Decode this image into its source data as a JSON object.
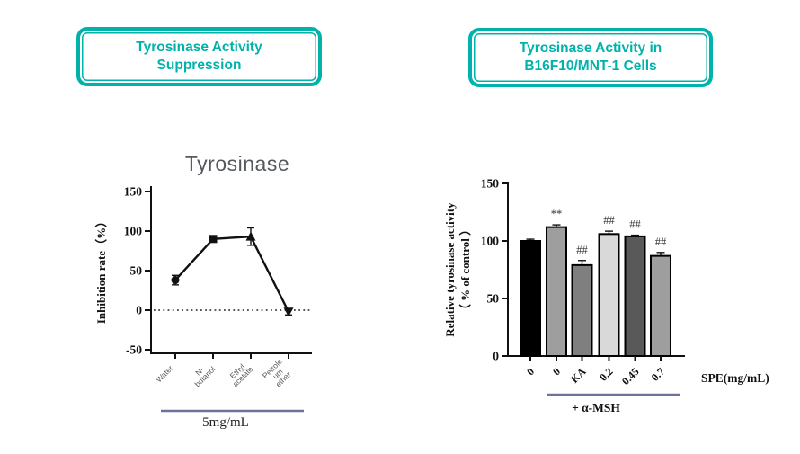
{
  "colors": {
    "accent_teal": "#00B2AA",
    "underline_slate": "#6E739D",
    "title_gray": "#55585E",
    "series_black": "#111111"
  },
  "headers": {
    "left": {
      "line1": "Tyrosinase Activity",
      "line2": "Suppression"
    },
    "right": {
      "line1": "Tyrosinase Activity in",
      "line2": "B16F10/MNT-1 Cells"
    }
  },
  "chart_data": [
    {
      "type": "line",
      "title": "Tyrosinase",
      "ylabel": "Inhibition rate（%）",
      "xlabel": "",
      "categories": [
        "Water",
        "N-butanol",
        "Ethyl acetate",
        "Petroleum ether"
      ],
      "category_display_lines": [
        [
          "Water"
        ],
        [
          "N-",
          "butanol"
        ],
        [
          "Ethyl",
          "acetate"
        ],
        [
          "Petrole",
          "um",
          "ether"
        ]
      ],
      "values": [
        38,
        90,
        93,
        -2
      ],
      "errors": [
        6,
        2,
        11,
        4
      ],
      "markers": [
        "circle",
        "square",
        "triangle-up",
        "triangle-down"
      ],
      "ylim": [
        -50,
        150
      ],
      "yticks": [
        150,
        100,
        50,
        0,
        -50
      ],
      "zero_line": "dotted",
      "grid": "off",
      "legend": "none",
      "group_label": "5mg/mL"
    },
    {
      "type": "bar",
      "title": "",
      "ylabel_line1": "Relative tyrosinase activity",
      "ylabel_line2": "（ % of control ）",
      "xlabel": "SPE(mg/mL)",
      "categories": [
        "0",
        "0",
        "KA",
        "0.2",
        "0.45",
        "0.7"
      ],
      "values": [
        100,
        112,
        79,
        106,
        104,
        87
      ],
      "errors": [
        1.5,
        2,
        4,
        2.5,
        1,
        3
      ],
      "bar_colors": [
        "#000000",
        "#9E9E9E",
        "#7F7F7F",
        "#D9D9D9",
        "#595959",
        "#9E9E9E"
      ],
      "annotations": [
        "",
        "**",
        "##",
        "##",
        "##",
        "##"
      ],
      "ylim": [
        0,
        150
      ],
      "yticks": [
        0,
        50,
        100,
        150
      ],
      "grid": "off",
      "legend": "none",
      "group_label": "+ α-MSH"
    }
  ]
}
